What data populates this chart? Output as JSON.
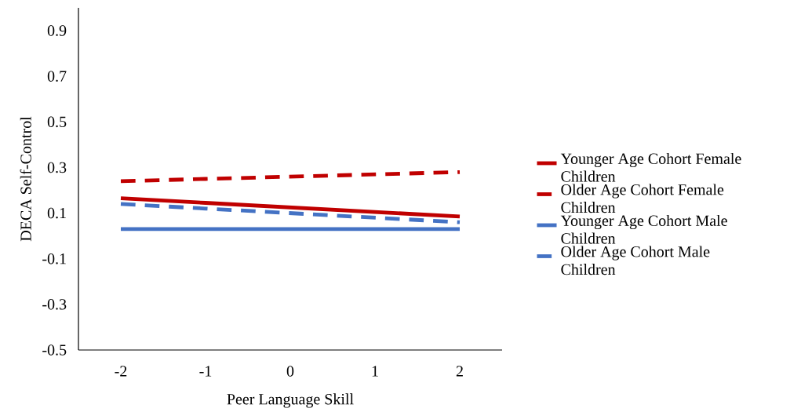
{
  "chart_data": {
    "type": "line",
    "xlabel": "Peer Language Skill",
    "ylabel": "DECA Self-Control",
    "categories": [
      "-2",
      "-1",
      "0",
      "1",
      "2"
    ],
    "ylim": [
      -0.5,
      1.0
    ],
    "yticks": [
      -0.5,
      -0.3,
      -0.1,
      0.1,
      0.3,
      0.5,
      0.7,
      0.9
    ],
    "grid": false,
    "legend": "right",
    "marker": "none",
    "series": [
      {
        "name": "Younger Age Cohort Female Children",
        "color": "#c00000",
        "line_style": "solid",
        "values": [
          0.165,
          0.145,
          0.125,
          0.105,
          0.085
        ]
      },
      {
        "name": "Older Age Cohort Female Children",
        "color": "#c00000",
        "line_style": "dashed",
        "values": [
          0.24,
          0.25,
          0.26,
          0.27,
          0.28
        ]
      },
      {
        "name": "Younger Age Cohort Male Children",
        "color": "#4472c4",
        "line_style": "solid",
        "values": [
          0.03,
          0.03,
          0.03,
          0.03,
          0.03
        ]
      },
      {
        "name": "Older Age Cohort Male Children",
        "color": "#4472c4",
        "line_style": "dashed",
        "values": [
          0.14,
          0.12,
          0.1,
          0.08,
          0.06
        ]
      }
    ]
  }
}
